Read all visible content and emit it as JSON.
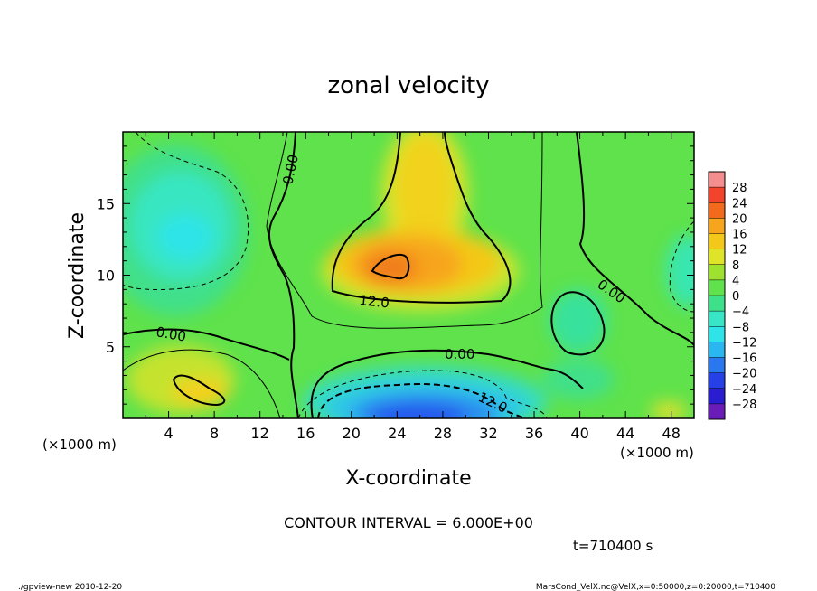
{
  "chart_data": {
    "type": "heatmap",
    "title": "zonal velocity",
    "xlabel": "X-coordinate",
    "ylabel": "Z-coordinate",
    "x_unit_left": "(×1000 m)",
    "x_unit_right": "(×1000 m)",
    "xlim": [
      0,
      50
    ],
    "ylim": [
      0,
      20
    ],
    "x_ticks": [
      "4",
      "8",
      "12",
      "16",
      "20",
      "24",
      "28",
      "32",
      "36",
      "40",
      "44",
      "48"
    ],
    "y_ticks": [
      "5",
      "10",
      "15"
    ],
    "colorbar_labels": [
      "28",
      "24",
      "20",
      "16",
      "12",
      "8",
      "4",
      "0",
      "−4",
      "−8",
      "−12",
      "−16",
      "−20",
      "−24",
      "−28"
    ],
    "contour_labels": [
      "0.00",
      "0.00",
      "0.00",
      "0.00",
      "12.0",
      "12.0"
    ],
    "contour_interval": "CONTOUR INTERVAL = 6.000E+00",
    "time": "t=710400 s",
    "footer_left": "./gpview-new   2010-12-20",
    "footer_right": "MarsCond_VelX.nc@VelX,x=0:50000,z=0:20000,t=710400"
  }
}
